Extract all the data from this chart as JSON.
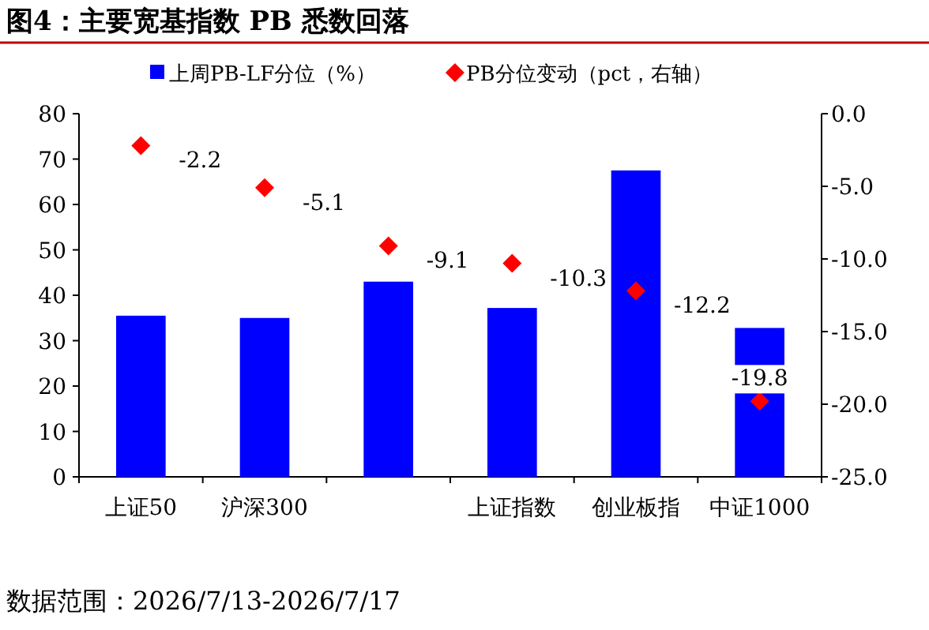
{
  "chart_data": {
    "type": "bar",
    "title": "图4：主要宽基指数 PB 悉数回落",
    "categories": [
      "上证50",
      "沪深300",
      null,
      "上证指数",
      "创业板指",
      "中证1000"
    ],
    "series": [
      {
        "name": "上周PB-LF分位（%）",
        "color": "#0000ff",
        "values": [
          35.5,
          35,
          43,
          37.2,
          67.5,
          32.8
        ]
      },
      {
        "name": "PB分位变动（pct，右轴）",
        "type": "scatter",
        "axis": "y2",
        "marker": "diamond",
        "color": "#ff0000",
        "values": [
          -2.2,
          -5.1,
          -9.1,
          -10.3,
          -12.2,
          -19.8
        ],
        "value_labels": [
          "-2.2",
          "-5.1",
          "-9.1",
          "-10.3",
          "-12.2",
          "-19.8"
        ]
      }
    ],
    "ylim": [
      0,
      80
    ],
    "yticks": [
      0,
      10,
      20,
      30,
      40,
      50,
      60,
      70,
      80
    ],
    "y2lim": [
      -25,
      0
    ],
    "y2ticks": [
      {
        "value": 0,
        "label": "0.0"
      },
      {
        "value": -5,
        "label": "-5.0"
      },
      {
        "value": -10,
        "label": "-10.0"
      },
      {
        "value": -15,
        "label": "-15.0"
      },
      {
        "value": -20,
        "label": "-20.0"
      },
      {
        "value": -25,
        "label": "-25.0"
      }
    ],
    "legend": "top",
    "annotations": [
      "数据范围：2026/7/13-2026/7/17"
    ]
  }
}
